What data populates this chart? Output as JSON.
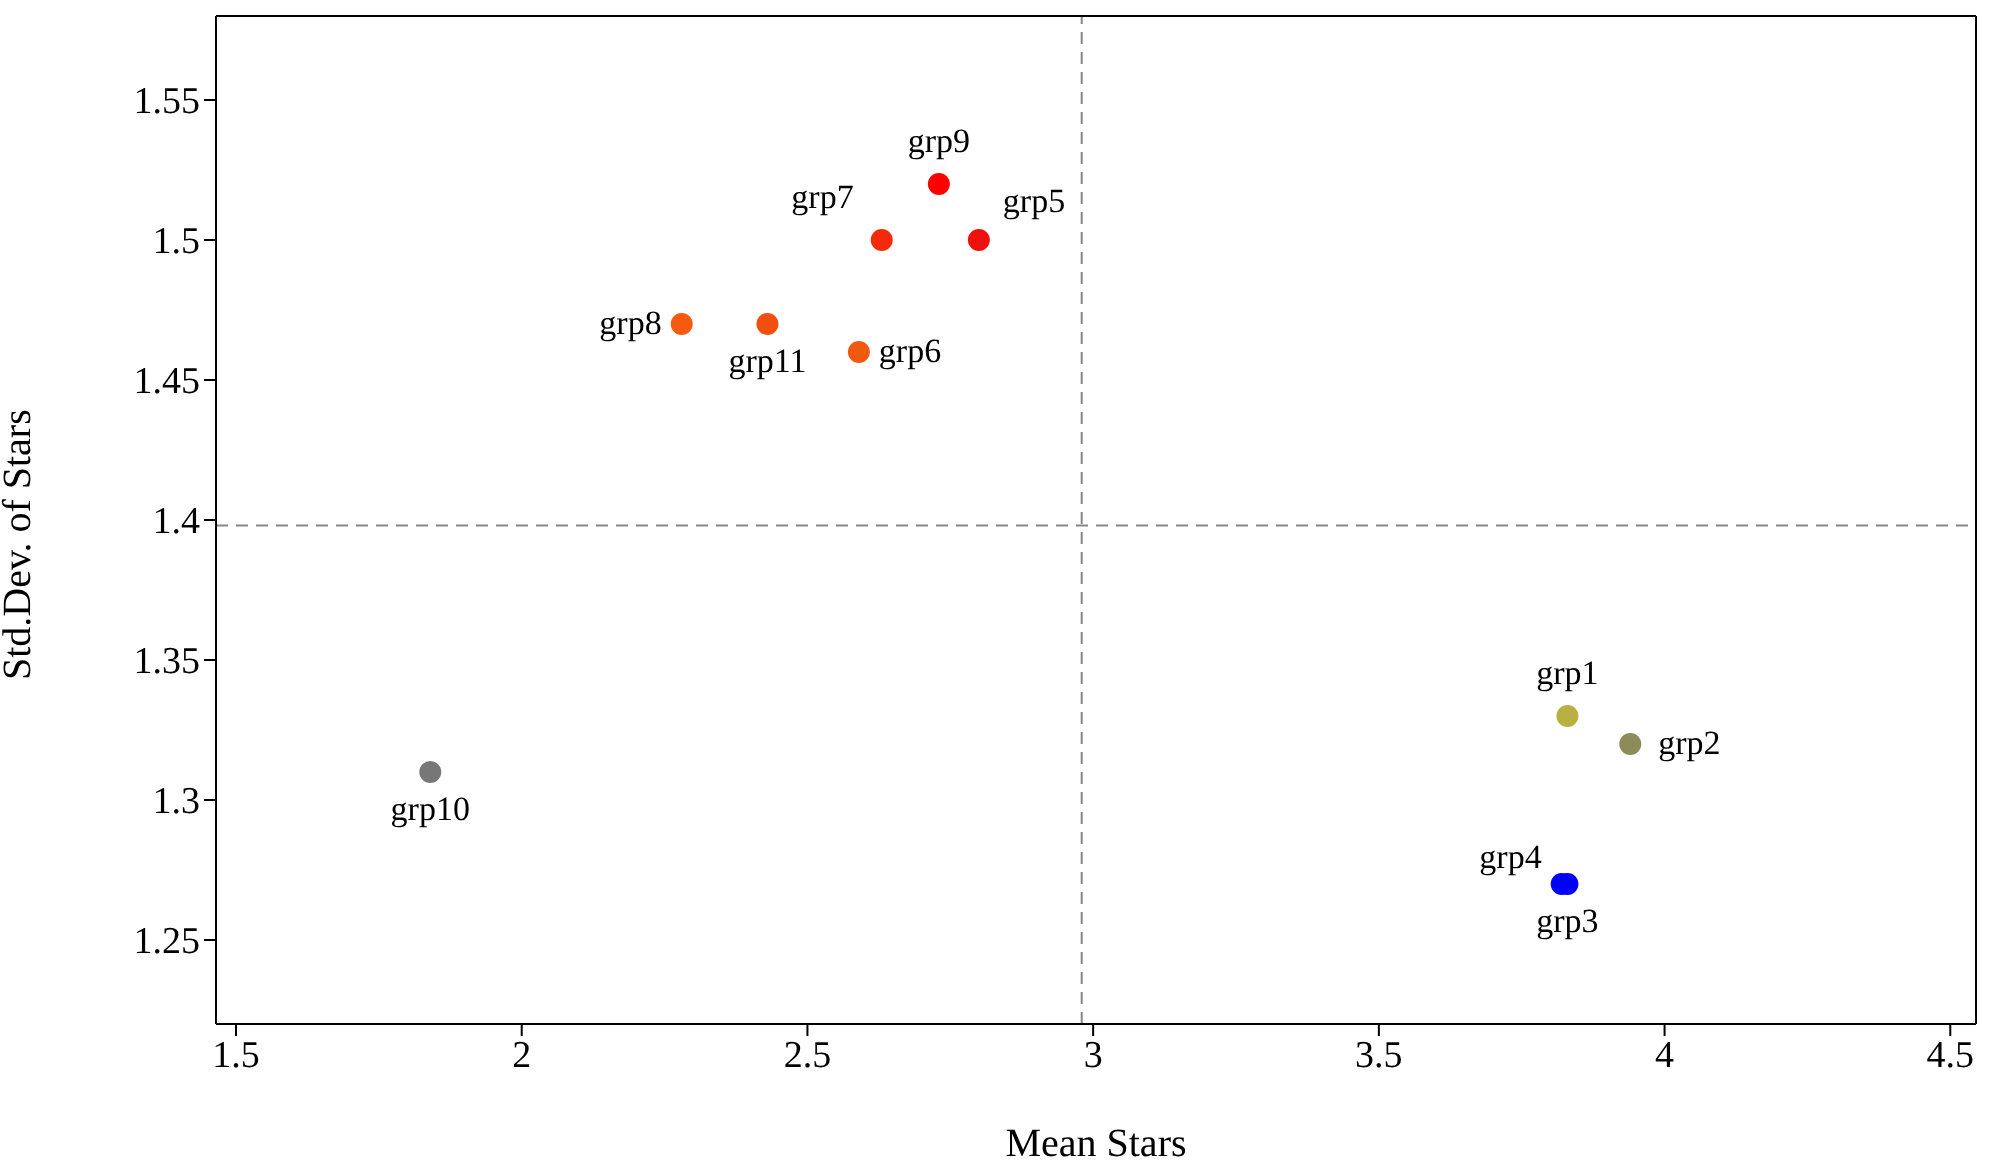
{
  "chart_data": {
    "type": "scatter",
    "xlabel": "Mean Stars",
    "ylabel": "Std.Dev. of Stars",
    "xlim": [
      1.465,
      4.545
    ],
    "xticks": [
      1.5,
      2,
      2.5,
      3,
      3.5,
      4,
      4.5
    ],
    "ylim": [
      1.22,
      1.58
    ],
    "yticks": [
      1.25,
      1.3,
      1.35,
      1.4,
      1.45,
      1.5,
      1.55
    ],
    "marker": "circle",
    "ref_lines": [
      {
        "axis": "x",
        "value": 2.98,
        "color": "#888888",
        "line_style": "dashed"
      },
      {
        "axis": "y",
        "value": 1.398,
        "color": "#888888",
        "line_style": "dashed"
      }
    ],
    "series": [
      {
        "name": "grp1",
        "color": "#b8b040",
        "x": [
          3.83
        ],
        "values": [
          1.33
        ]
      },
      {
        "name": "grp2",
        "color": "#8c8c58",
        "x": [
          3.94
        ],
        "values": [
          1.32
        ]
      },
      {
        "name": "grp3",
        "color": "#0000ff",
        "x": [
          3.83
        ],
        "values": [
          1.27
        ]
      },
      {
        "name": "grp4",
        "color": "#0000ff",
        "x": [
          3.82
        ],
        "values": [
          1.27
        ]
      },
      {
        "name": "grp5",
        "color": "#f01010",
        "x": [
          2.8
        ],
        "values": [
          1.5
        ]
      },
      {
        "name": "grp6",
        "color": "#f05a10",
        "x": [
          2.59
        ],
        "values": [
          1.46
        ]
      },
      {
        "name": "grp7",
        "color": "#f52a0a",
        "x": [
          2.63
        ],
        "values": [
          1.5
        ]
      },
      {
        "name": "grp8",
        "color": "#f55a10",
        "x": [
          2.28
        ],
        "values": [
          1.47
        ]
      },
      {
        "name": "grp9",
        "color": "#ff0000",
        "x": [
          2.73
        ],
        "values": [
          1.52
        ]
      },
      {
        "name": "grp10",
        "color": "#777777",
        "x": [
          1.84
        ],
        "values": [
          1.31
        ]
      },
      {
        "name": "grp11",
        "color": "#f04f10",
        "x": [
          2.43
        ],
        "values": [
          1.47
        ]
      }
    ]
  }
}
